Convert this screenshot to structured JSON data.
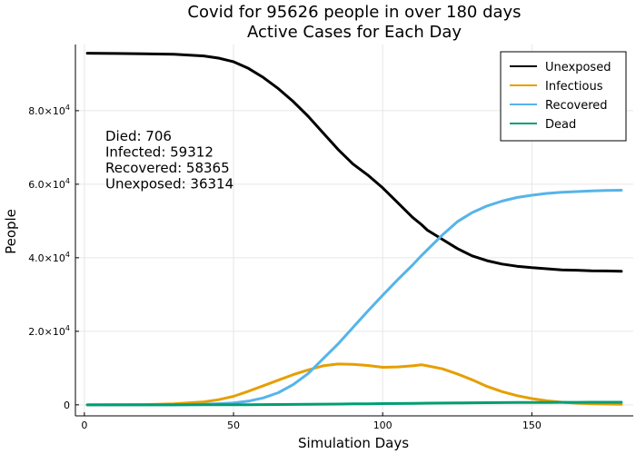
{
  "chart_data": {
    "type": "line",
    "title_line1": "Covid for 95626 people in  over 180 days",
    "title_line2": "Active Cases for Each Day",
    "xlabel": "Simulation Days",
    "ylabel": "People",
    "xlim": [
      -3,
      184
    ],
    "ylim": [
      -3000,
      98000
    ],
    "x_ticks": [
      0,
      50,
      100,
      150
    ],
    "y_ticks": [
      {
        "value": 0,
        "label": "0"
      },
      {
        "value": 20000,
        "mant": "2.0×10",
        "exp": "4"
      },
      {
        "value": 40000,
        "mant": "4.0×10",
        "exp": "4"
      },
      {
        "value": 60000,
        "mant": "6.0×10",
        "exp": "4"
      },
      {
        "value": 80000,
        "mant": "8.0×10",
        "exp": "4"
      }
    ],
    "grid": true,
    "legend_position": "top-right",
    "annotations": [
      "Died: 706",
      "Infected: 59312",
      "Recovered: 58365",
      "Unexposed: 36314"
    ],
    "x": [
      1,
      10,
      20,
      30,
      40,
      45,
      50,
      55,
      60,
      65,
      70,
      75,
      80,
      85,
      90,
      95,
      100,
      105,
      110,
      113,
      115,
      120,
      125,
      130,
      135,
      140,
      145,
      150,
      155,
      160,
      165,
      170,
      175,
      180
    ],
    "series": [
      {
        "name": "Unexposed",
        "color": "#000000",
        "values": [
          95626,
          95560,
          95480,
          95350,
          94900,
          94300,
          93300,
          91500,
          89000,
          86000,
          82500,
          78500,
          74000,
          69500,
          65500,
          62500,
          59000,
          55000,
          51000,
          49000,
          47500,
          45000,
          42500,
          40500,
          39200,
          38300,
          37700,
          37300,
          37000,
          36700,
          36600,
          36450,
          36400,
          36314
        ]
      },
      {
        "name": "Infectious",
        "color": "#e69f00",
        "values": [
          0,
          10,
          60,
          250,
          800,
          1400,
          2300,
          3700,
          5200,
          6700,
          8200,
          9500,
          10600,
          11100,
          11000,
          10700,
          10200,
          10300,
          10600,
          10900,
          10600,
          9800,
          8400,
          6800,
          5000,
          3600,
          2500,
          1700,
          1100,
          700,
          450,
          300,
          200,
          150
        ]
      },
      {
        "name": "Recovered",
        "color": "#56b4e9",
        "values": [
          0,
          0,
          5,
          40,
          150,
          300,
          500,
          1000,
          1900,
          3300,
          5500,
          8500,
          12500,
          16500,
          21000,
          25500,
          29800,
          34000,
          38000,
          40600,
          42200,
          46200,
          49800,
          52300,
          54100,
          55400,
          56400,
          57000,
          57500,
          57800,
          58000,
          58200,
          58300,
          58365
        ]
      },
      {
        "name": "Dead",
        "color": "#009e73",
        "values": [
          0,
          0,
          0,
          0,
          5,
          10,
          20,
          35,
          55,
          80,
          110,
          145,
          180,
          215,
          250,
          290,
          330,
          370,
          410,
          430,
          445,
          480,
          515,
          545,
          575,
          600,
          625,
          645,
          660,
          675,
          685,
          695,
          700,
          706
        ]
      }
    ]
  }
}
